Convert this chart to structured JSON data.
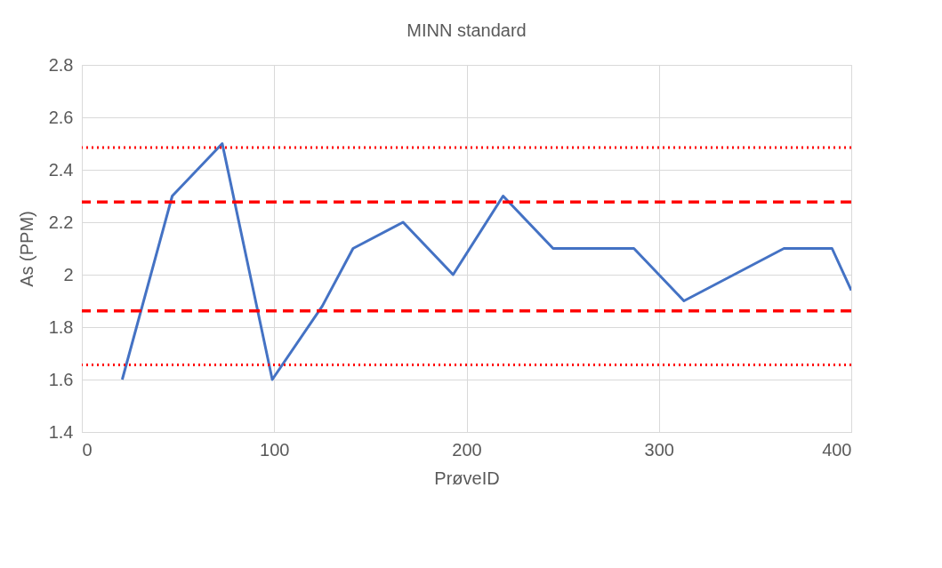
{
  "chart_data": {
    "type": "line",
    "title": "MINN standard",
    "xlabel": "PrøveID",
    "ylabel": "As (PPM)",
    "x": [
      21,
      47,
      73,
      99,
      125,
      141,
      167,
      193,
      219,
      245,
      287,
      313,
      365,
      390,
      400
    ],
    "series": [
      {
        "color": "#4472c4",
        "values": [
          1.6,
          2.3,
          2.5,
          1.6,
          1.88,
          2.1,
          2.2,
          2.0,
          2.3,
          2.1,
          2.1,
          1.9,
          2.1,
          2.1,
          1.94
        ]
      }
    ],
    "xlim": [
      0,
      400
    ],
    "xticks": [
      0,
      100,
      200,
      300,
      400
    ],
    "ylim": [
      1.4,
      2.8
    ],
    "yticks": [
      {
        "value": 1.4,
        "label": "1.4"
      },
      {
        "value": 1.6,
        "label": "1.6"
      },
      {
        "value": 1.8,
        "label": "1.8"
      },
      2,
      {
        "value": 2.2,
        "label": "2.2"
      },
      {
        "value": 2.4,
        "label": "2.4"
      },
      {
        "value": 2.6,
        "label": "2.6"
      },
      {
        "value": 2.8,
        "label": "2.8"
      }
    ],
    "grid": true,
    "marker": "none",
    "line_style": "solid",
    "ref_lines": [
      {
        "axis": "y",
        "value": 2.485,
        "color": "#ff0000",
        "line_style": "dotted"
      },
      {
        "axis": "y",
        "value": 2.277,
        "color": "#ff0000",
        "line_style": "dashed"
      },
      {
        "axis": "y",
        "value": 1.862,
        "color": "#ff0000",
        "line_style": "dashed"
      },
      {
        "axis": "y",
        "value": 1.656,
        "color": "#ff0000",
        "line_style": "dotted"
      }
    ]
  }
}
